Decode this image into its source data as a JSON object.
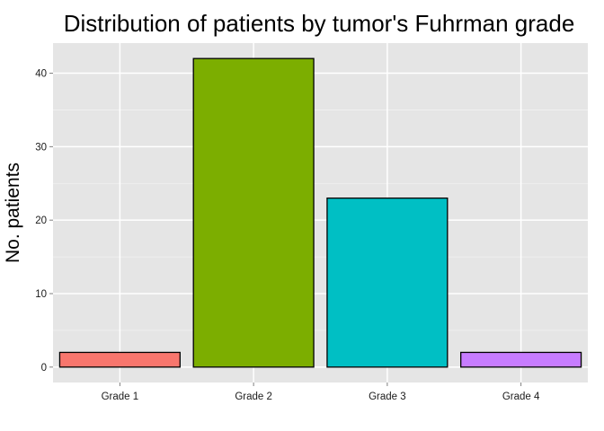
{
  "chart_data": {
    "type": "bar",
    "title": "Distribution of patients by tumor's Fuhrman grade",
    "xlabel": "",
    "ylabel": "No. patients",
    "categories": [
      "Grade 1",
      "Grade 2",
      "Grade 3",
      "Grade 4"
    ],
    "values": [
      2,
      42,
      23,
      2
    ],
    "colors": [
      "#F8766D",
      "#7CAE00",
      "#00BFC4",
      "#C77CFF"
    ],
    "ylim": [
      -2.1,
      44.1
    ],
    "yticks": [
      0,
      10,
      20,
      30,
      40
    ],
    "grid": true,
    "panel_background": "#E5E5E5",
    "bar_outline": "#000000"
  }
}
